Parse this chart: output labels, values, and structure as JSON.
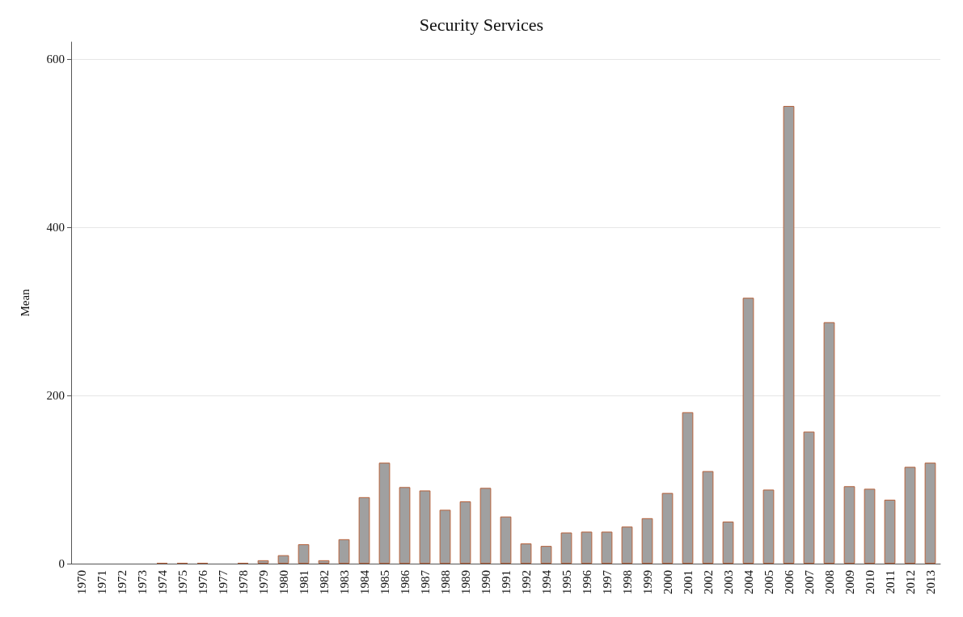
{
  "chart_data": {
    "type": "bar",
    "title": "Security Services",
    "ylabel": "Mean",
    "categories": [
      "1970",
      "1971",
      "1972",
      "1973",
      "1974",
      "1975",
      "1976",
      "1977",
      "1978",
      "1979",
      "1980",
      "1981",
      "1982",
      "1983",
      "1984",
      "1985",
      "1986",
      "1987",
      "1988",
      "1989",
      "1990",
      "1991",
      "1992",
      "1994",
      "1995",
      "1996",
      "1997",
      "1998",
      "1999",
      "2000",
      "2001",
      "2002",
      "2003",
      "2004",
      "2005",
      "2006",
      "2007",
      "2008",
      "2009",
      "2010",
      "2011",
      "2012",
      "2013"
    ],
    "values": [
      0,
      0,
      0,
      0,
      1,
      1,
      1,
      0,
      1,
      4,
      10,
      23,
      4,
      29,
      79,
      120,
      91,
      87,
      64,
      74,
      90,
      56,
      24,
      21,
      37,
      38,
      38,
      44,
      54,
      84,
      180,
      110,
      50,
      316,
      88,
      544,
      157,
      287,
      92,
      89,
      76,
      115,
      120
    ],
    "color": "#a0a0a0",
    "ylim": [
      0,
      620
    ],
    "yticks": [
      0,
      200,
      400,
      600
    ],
    "grid": "y"
  }
}
